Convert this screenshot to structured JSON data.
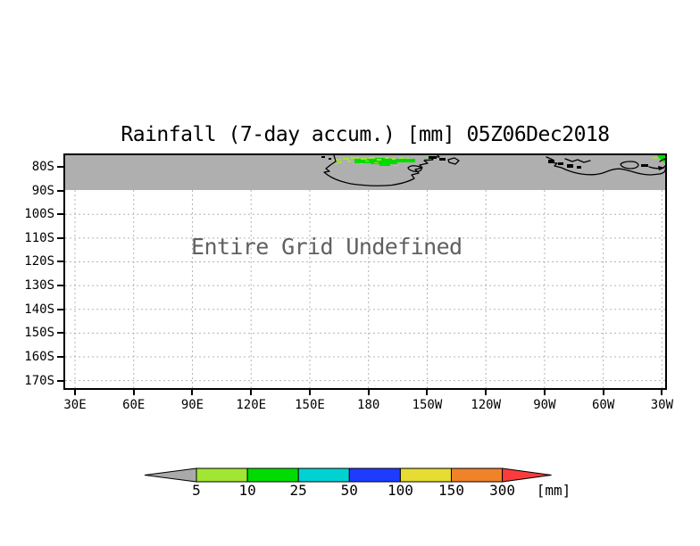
{
  "title": "Rainfall (7-day accum.) [mm] 05Z06Dec2018",
  "map": {
    "undefined_text": "Entire Grid Undefined",
    "y_axis_ticks": [
      "80S",
      "90S",
      "100S",
      "110S",
      "120S",
      "130S",
      "140S",
      "150S",
      "160S",
      "170S"
    ],
    "x_axis_ticks": [
      "30E",
      "60E",
      "90E",
      "120E",
      "150E",
      "180",
      "150W",
      "120W",
      "90W",
      "60W",
      "30W"
    ],
    "colors": {
      "undefined_band": "#AFAFAF",
      "gridline": "#B4B4B4",
      "coastline": "#000000",
      "rain_light_green": "#A0E632",
      "rain_green": "#00DC00"
    }
  },
  "colorbar": {
    "levels": [
      "5",
      "10",
      "25",
      "50",
      "100",
      "150",
      "300"
    ],
    "unit_label": "[mm]",
    "left_arrow_color": "#AAAAAA",
    "segment_colors": [
      "#A0E632",
      "#00DC00",
      "#00D2D2",
      "#1E3CFF",
      "#E6DC32",
      "#F08228"
    ],
    "right_arrow_color": "#FA3C3C"
  },
  "chart_data": {
    "type": "heatmap",
    "title": "Rainfall (7-day accum.) [mm] 05Z06Dec2018",
    "x_ticks": [
      "30E",
      "60E",
      "90E",
      "120E",
      "150E",
      "180",
      "150W",
      "120W",
      "90W",
      "60W",
      "30W"
    ],
    "y_ticks": [
      "80S",
      "90S",
      "100S",
      "110S",
      "120S",
      "130S",
      "140S",
      "150S",
      "160S",
      "170S"
    ],
    "annotation": "Entire Grid Undefined",
    "legend": {
      "title": "[mm]",
      "levels": [
        5,
        10,
        25,
        50,
        100,
        150,
        300
      ],
      "colors": [
        "#AAAAAA",
        "#A0E632",
        "#00DC00",
        "#00D2D2",
        "#1E3CFF",
        "#E6DC32",
        "#F08228",
        "#FA3C3C"
      ],
      "position": "bottom"
    },
    "grid": true,
    "notes": "Rainfall field undefined over entire grid except small green accumulations (5-25 mm) along the gray undefined band near 150E-180 and at the top-right corner near 30W; coastlines drawn inside gray band between 80S and 90S labels."
  }
}
